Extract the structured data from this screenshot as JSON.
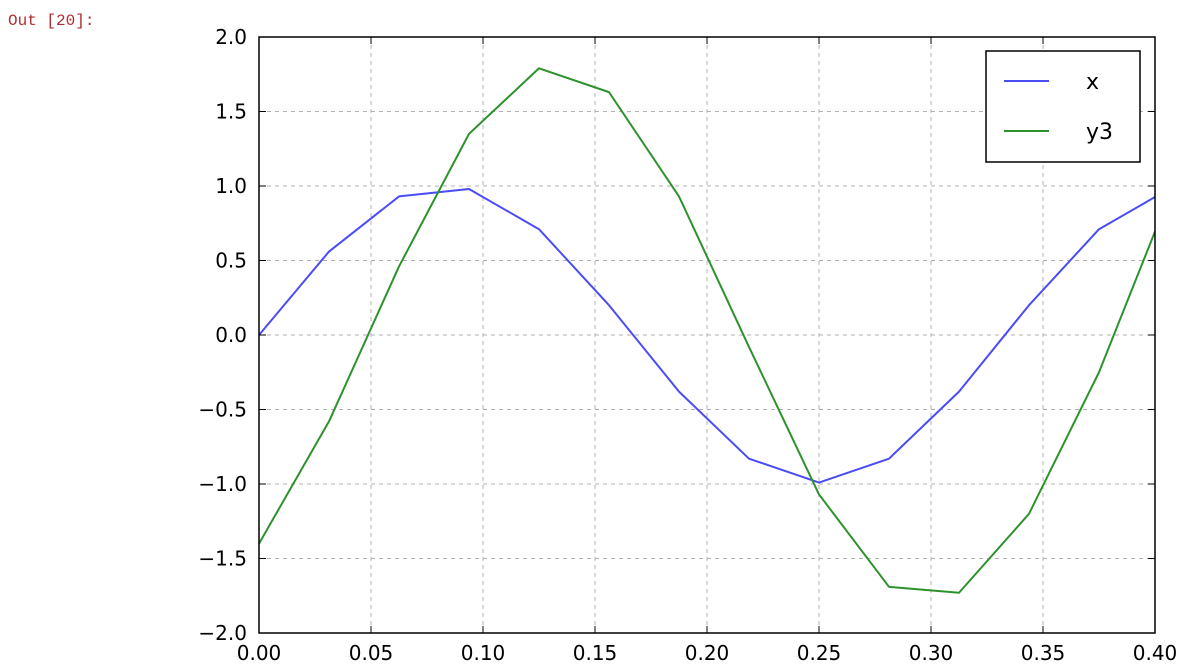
{
  "cell": {
    "prompt": "Out [20]:"
  },
  "chart_data": {
    "type": "line",
    "title": "",
    "xlabel": "",
    "ylabel": "",
    "xlim": [
      0.0,
      0.4
    ],
    "ylim": [
      -2.0,
      2.0
    ],
    "grid": true,
    "legend_position": "top-right",
    "x_ticks": [
      "0.00",
      "0.05",
      "0.10",
      "0.15",
      "0.20",
      "0.25",
      "0.30",
      "0.35",
      "0.40"
    ],
    "y_ticks": [
      "2.0",
      "1.5",
      "1.0",
      "0.5",
      "0.0",
      "−0.5",
      "−1.0",
      "−1.5",
      "−2.0"
    ],
    "x": [
      0.0,
      0.03125,
      0.0625,
      0.09375,
      0.125,
      0.15625,
      0.1875,
      0.21875,
      0.25,
      0.28125,
      0.3125,
      0.34375,
      0.375,
      0.40625
    ],
    "series": [
      {
        "name": "x",
        "color": "#4a4cf6",
        "values": [
          0.0,
          0.56,
          0.93,
          0.98,
          0.71,
          0.2,
          -0.38,
          -0.83,
          -0.99,
          -0.83,
          -0.38,
          0.2,
          0.71,
          0.98
        ]
      },
      {
        "name": "y3",
        "color": "#2d922d",
        "values": [
          -1.4,
          -0.58,
          0.46,
          1.35,
          1.79,
          1.63,
          0.93,
          -0.08,
          -1.07,
          -1.69,
          -1.73,
          -1.2,
          -0.25,
          0.93
        ]
      }
    ]
  }
}
